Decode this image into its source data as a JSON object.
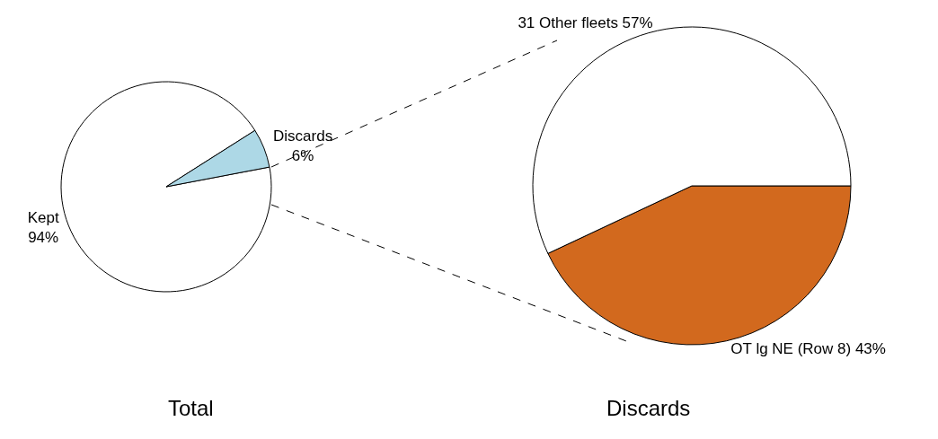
{
  "chart_data": [
    {
      "type": "pie",
      "title": "Total",
      "categories": [
        "Kept",
        "Discards"
      ],
      "values": [
        94,
        6
      ],
      "value_labels": [
        "94%",
        "6%"
      ],
      "colors": [
        "#ffffff",
        "#add8e6"
      ],
      "legend": false
    },
    {
      "type": "pie",
      "title": "Discards",
      "categories": [
        "OT lg NE (Row 8)",
        "31 Other fleets"
      ],
      "values": [
        43,
        57
      ],
      "value_labels": [
        "43%",
        "57%"
      ],
      "colors": [
        "#d2691e",
        "#ffffff"
      ],
      "legend": false
    }
  ]
}
